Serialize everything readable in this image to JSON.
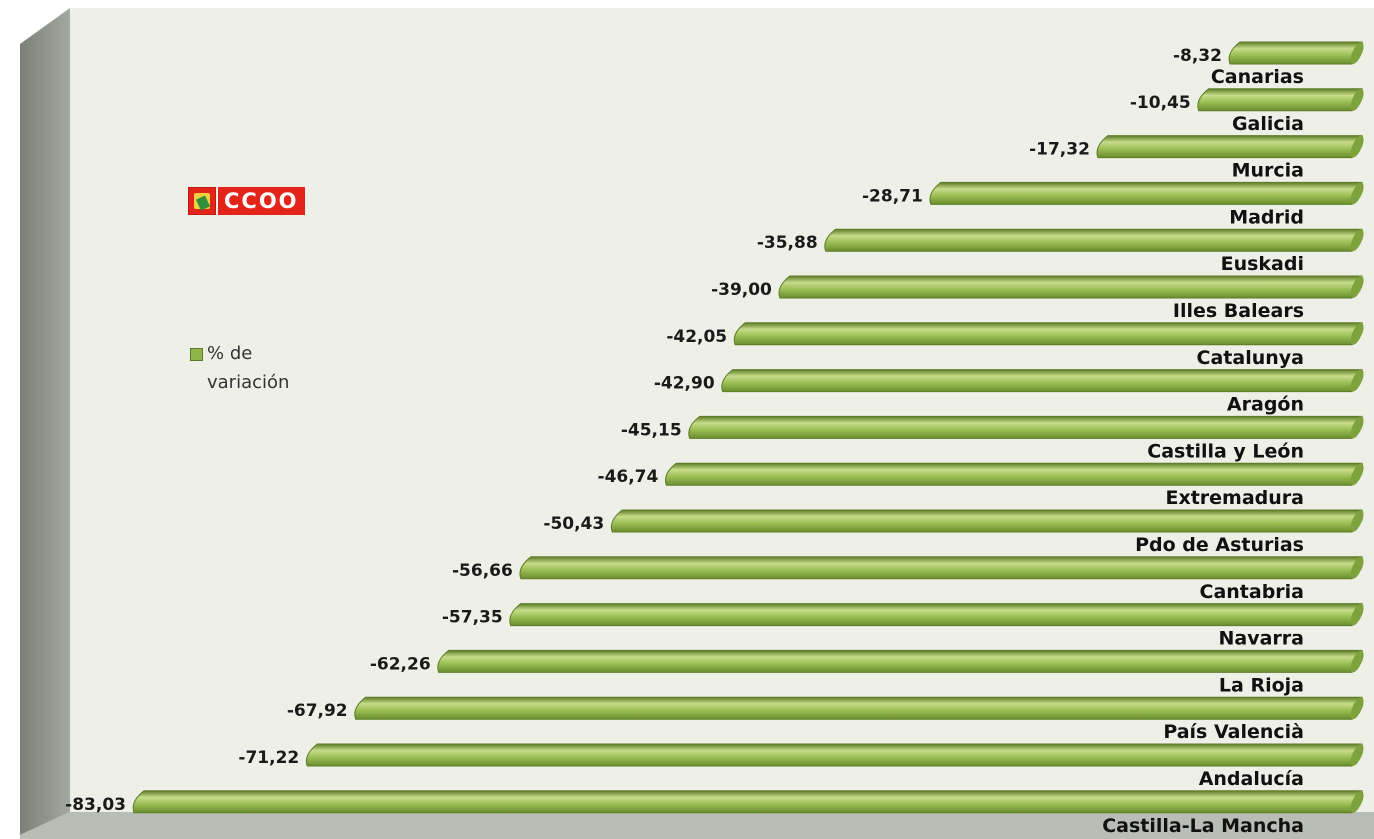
{
  "chart_data": {
    "type": "bar",
    "orientation": "horizontal",
    "categories": [
      "Canarias",
      "Galicia",
      "Murcia",
      "Madrid",
      "Euskadi",
      "Illes Balears",
      "Catalunya",
      "Aragón",
      "Castilla y León",
      "Extremadura",
      "Pdo de Asturias",
      "Cantabria",
      "Navarra",
      "La Rioja",
      "País Valencià",
      "Andalucía",
      "Castilla-La Mancha"
    ],
    "values": [
      -8.32,
      -10.45,
      -17.32,
      -28.71,
      -35.88,
      -39.0,
      -42.05,
      -42.9,
      -45.15,
      -46.74,
      -50.43,
      -56.66,
      -57.35,
      -62.26,
      -67.92,
      -71.22,
      -83.03
    ],
    "value_labels": [
      "-8,32",
      "-10,45",
      "-17,32",
      "-28,71",
      "-35,88",
      "-39,00",
      "-42,05",
      "-42,90",
      "-45,15",
      "-46,74",
      "-50,43",
      "-56,66",
      "-57,35",
      "-62,26",
      "-67,92",
      "-71,22",
      "-83,03"
    ],
    "series": [
      {
        "name": "% de variación"
      }
    ],
    "xlim": [
      -90,
      0
    ],
    "grid": false,
    "legend_position": "left",
    "colors": {
      "bar": "#8fb44a",
      "bar_light": "#c6dc8a",
      "bar_dark": "#5e7c27",
      "wall": "#eef0e8",
      "wall_side": "#8c918a",
      "floor": "#b7bcb5"
    }
  },
  "logo": {
    "text": "CCOO"
  }
}
